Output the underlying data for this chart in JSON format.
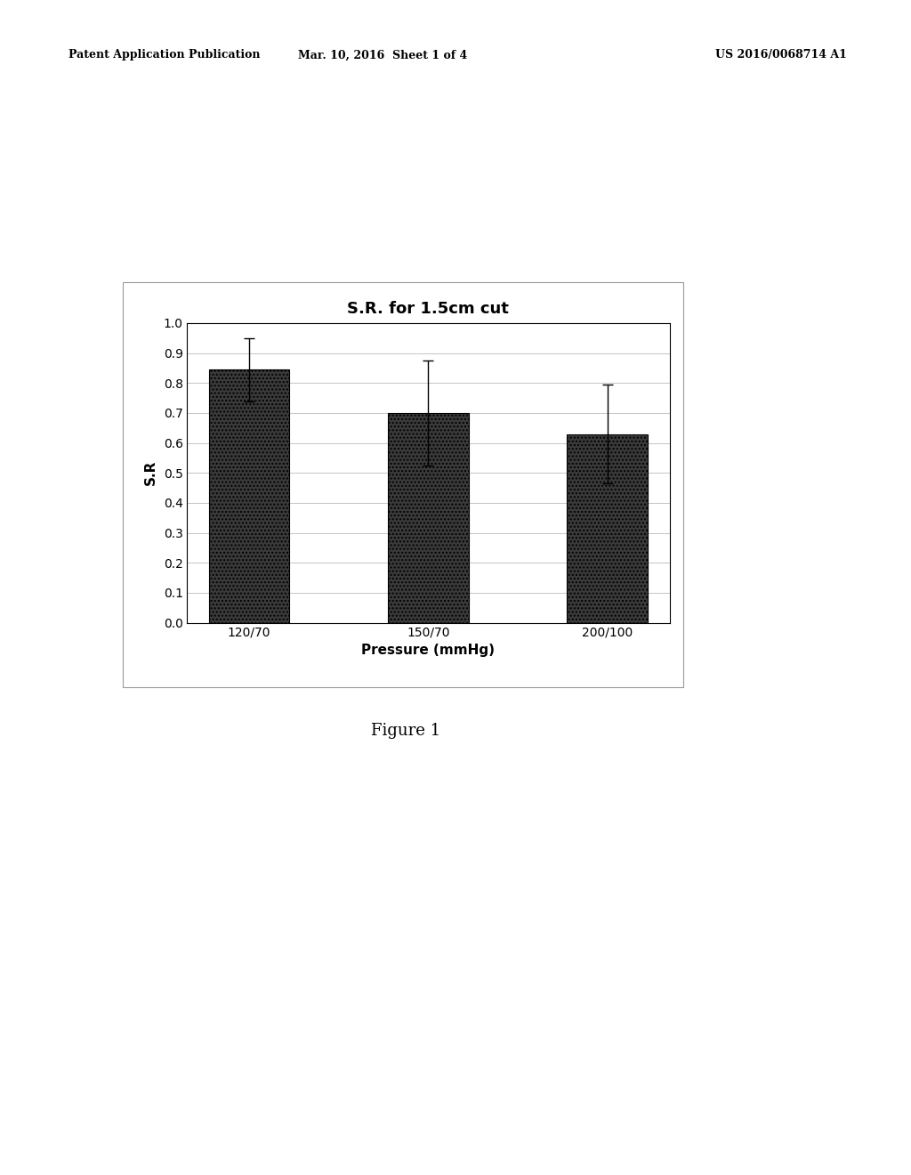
{
  "title": "S.R. for 1.5cm cut",
  "xlabel": "Pressure (mmHg)",
  "ylabel": "S.R",
  "categories": [
    "120/70",
    "150/70",
    "200/100"
  ],
  "values": [
    0.845,
    0.7,
    0.63
  ],
  "errors": [
    0.105,
    0.175,
    0.165
  ],
  "ylim": [
    0.0,
    1.0
  ],
  "yticks": [
    0.0,
    0.1,
    0.2,
    0.3,
    0.4,
    0.5,
    0.6,
    0.7,
    0.8,
    0.9,
    1.0
  ],
  "bar_color": "#444444",
  "bar_edge_color": "#000000",
  "background_color": "#ffffff",
  "chart_bg_color": "#ffffff",
  "fig_caption": "Figure 1",
  "header_left": "Patent Application Publication",
  "header_center": "Mar. 10, 2016  Sheet 1 of 4",
  "header_right": "US 2016/0068714 A1",
  "bar_width": 0.45,
  "title_fontsize": 13,
  "label_fontsize": 11,
  "tick_fontsize": 10,
  "header_fontsize": 9,
  "caption_fontsize": 13
}
